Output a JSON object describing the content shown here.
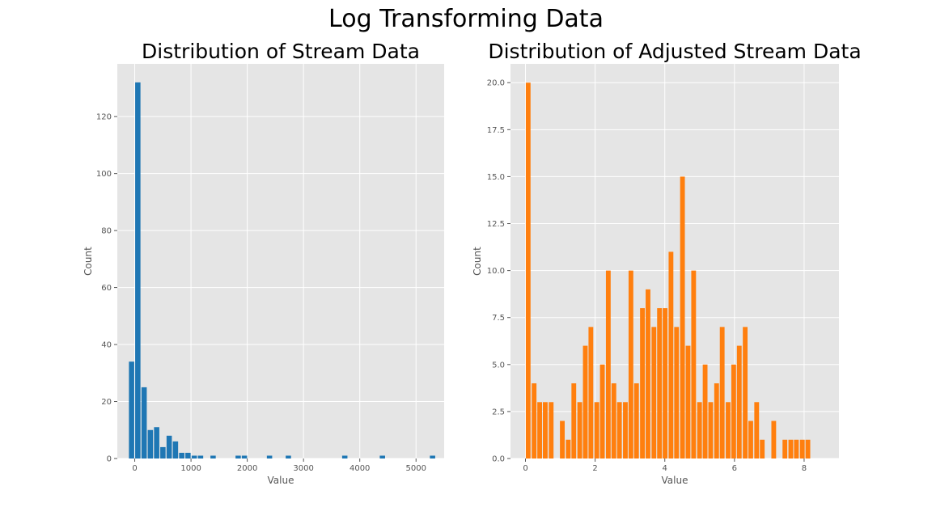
{
  "figure": {
    "title": "Log Transforming Data"
  },
  "chart_data": [
    {
      "type": "bar",
      "title": "Distribution of Stream Data",
      "xlabel": "Value",
      "ylabel": "Count",
      "color": "#1f77b4",
      "xlim": [
        -310,
        5500
      ],
      "ylim": [
        0,
        138.5
      ],
      "grid": true,
      "x_ticks": [
        0,
        1000,
        2000,
        3000,
        4000,
        5000
      ],
      "y_ticks": [
        0,
        20,
        40,
        60,
        80,
        100,
        120
      ],
      "bin_width": 111.5,
      "x": [
        -55,
        56,
        168,
        279,
        391,
        502,
        614,
        725,
        837,
        948,
        1060,
        1171,
        1394,
        1840,
        1951,
        2397,
        2732,
        3735,
        4404,
        5295
      ],
      "values": [
        34,
        132,
        25,
        10,
        11,
        4,
        8,
        6,
        2,
        2,
        1,
        1,
        1,
        1,
        1,
        1,
        1,
        1,
        1,
        1
      ]
    },
    {
      "type": "bar",
      "title": "Distribution of Adjusted Stream Data",
      "xlabel": "Value",
      "ylabel": "Count",
      "color": "#ff7f0e",
      "xlim": [
        -0.43,
        9.0
      ],
      "ylim": [
        0,
        21.0
      ],
      "grid": true,
      "x_ticks": [
        0,
        2,
        4,
        6,
        8
      ],
      "y_ticks": [
        0.0,
        2.5,
        5.0,
        7.5,
        10.0,
        12.5,
        15.0,
        17.5,
        20.0
      ],
      "bin_width": 0.1638,
      "x": [
        0.08,
        0.25,
        0.41,
        0.57,
        0.74,
        0.9,
        1.06,
        1.23,
        1.39,
        1.56,
        1.72,
        1.88,
        2.05,
        2.21,
        2.38,
        2.54,
        2.7,
        2.87,
        3.03,
        3.19,
        3.36,
        3.52,
        3.69,
        3.85,
        4.01,
        4.18,
        4.34,
        4.51,
        4.67,
        4.83,
        5.0,
        5.16,
        5.32,
        5.49,
        5.65,
        5.82,
        5.98,
        6.14,
        6.31,
        6.47,
        6.64,
        6.8,
        6.96,
        7.13,
        7.29,
        7.45,
        7.62,
        7.78,
        7.95,
        8.11,
        8.27,
        8.44
      ],
      "values": [
        20,
        4,
        3,
        3,
        3,
        0,
        2,
        1,
        4,
        3,
        6,
        7,
        3,
        5,
        10,
        4,
        3,
        3,
        10,
        4,
        8,
        9,
        7,
        8,
        8,
        11,
        7,
        15,
        6,
        10,
        3,
        5,
        3,
        4,
        7,
        3,
        5,
        6,
        7,
        2,
        3,
        1,
        0,
        2,
        0,
        1,
        1,
        1,
        1,
        1,
        0,
        0
      ]
    }
  ]
}
